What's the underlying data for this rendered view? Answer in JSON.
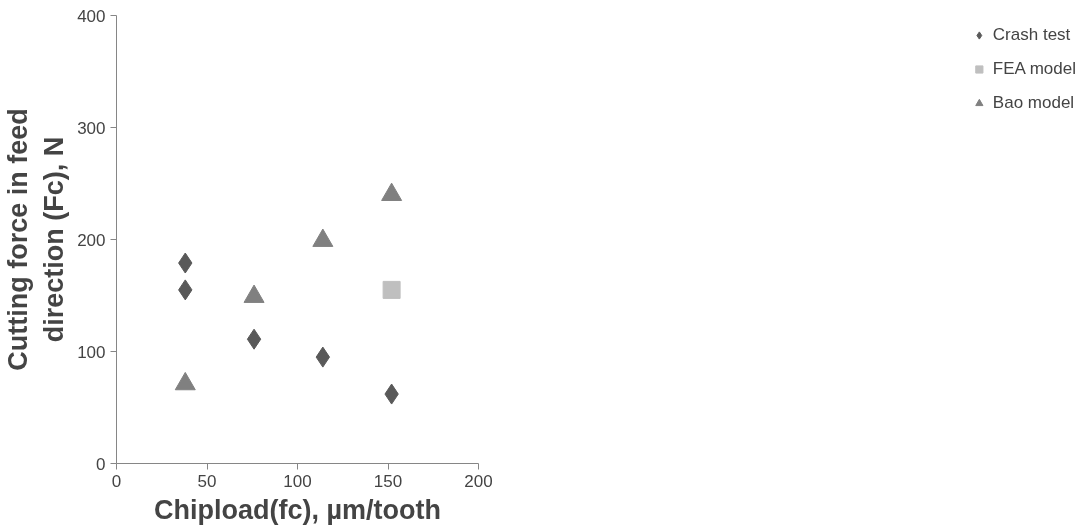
{
  "chart_data": {
    "type": "scatter",
    "xlabel": "Chipload(fc), µm/tooth",
    "ylabel": "Cutting force in feed\ndirection (Fc), N",
    "xlim": [
      0,
      200
    ],
    "xticks": [
      0,
      50,
      100,
      150,
      200
    ],
    "ylim": [
      0,
      400
    ],
    "yticks": [
      0,
      100,
      200,
      300,
      400
    ],
    "grid": false,
    "legend": "right",
    "series": [
      {
        "name": "Crash test",
        "color": "#595959",
        "marker": "diamond",
        "x": [
          38,
          38,
          76,
          114,
          152
        ],
        "values": [
          179,
          155,
          111,
          95,
          62
        ]
      },
      {
        "name": "FEA model",
        "color": "#bfbfbf",
        "marker": "square",
        "x": [
          152
        ],
        "values": [
          155
        ]
      },
      {
        "name": "Bao model",
        "color": "#808080",
        "marker": "triangle",
        "x": [
          38,
          76,
          114,
          152
        ],
        "values": [
          71,
          149,
          199,
          240
        ]
      }
    ]
  }
}
